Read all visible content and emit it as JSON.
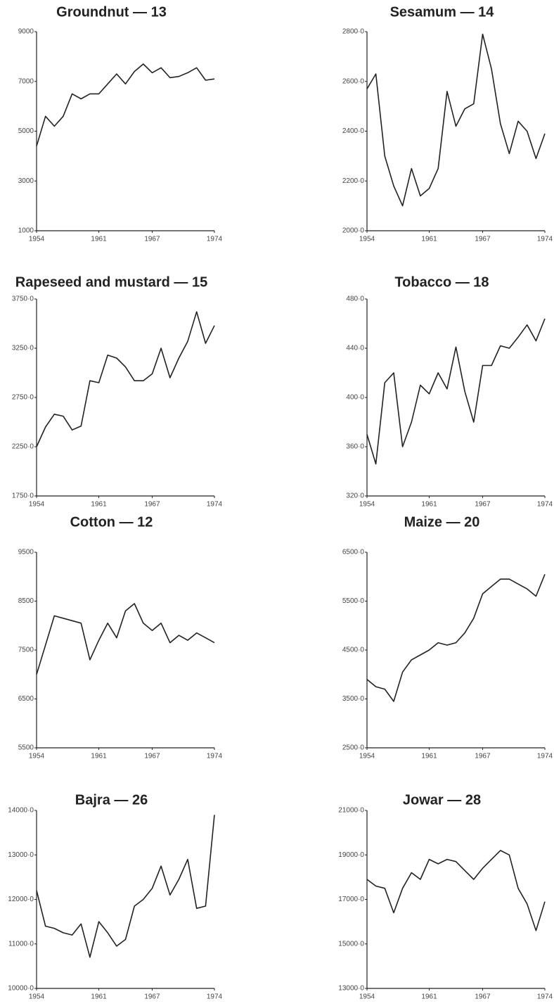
{
  "chart_data": [
    {
      "type": "line",
      "title": "Groundnut — 13",
      "color": "#222222",
      "x": [
        1954,
        1955,
        1956,
        1957,
        1958,
        1959,
        1960,
        1961,
        1962,
        1963,
        1964,
        1965,
        1966,
        1967,
        1968,
        1969,
        1970,
        1971,
        1972,
        1973,
        1974
      ],
      "values": [
        4400,
        5600,
        5200,
        5600,
        6500,
        6300,
        6500,
        6500,
        6900,
        7300,
        6900,
        7400,
        7700,
        7350,
        7550,
        7150,
        7200,
        7350,
        7550,
        7050,
        7100
      ],
      "xlim": [
        1954,
        1974
      ],
      "xticks": [
        1954,
        1961,
        1967,
        1974
      ],
      "ylim": [
        1000,
        9000
      ],
      "yticks": [
        1000,
        3000,
        5000,
        7000,
        9000
      ]
    },
    {
      "type": "line",
      "title": "Sesamum — 14",
      "color": "#222222",
      "x": [
        1954,
        1955,
        1956,
        1957,
        1958,
        1959,
        1960,
        1961,
        1962,
        1963,
        1964,
        1965,
        1966,
        1967,
        1968,
        1969,
        1970,
        1971,
        1972,
        1973,
        1974
      ],
      "values": [
        2570,
        2630,
        2300,
        2180,
        2100,
        2250,
        2140,
        2170,
        2250,
        2560,
        2420,
        2490,
        2510,
        2790,
        2650,
        2430,
        2310,
        2440,
        2400,
        2290,
        2390
      ],
      "xlim": [
        1954,
        1974
      ],
      "xticks": [
        1954,
        1961,
        1967,
        1974
      ],
      "ylim": [
        2000,
        2800
      ],
      "yticks": [
        {
          "value": 2000,
          "label": "2000·0"
        },
        {
          "value": 2200,
          "label": "2200·0"
        },
        {
          "value": 2400,
          "label": "2400·0"
        },
        {
          "value": 2600,
          "label": "2600·0"
        },
        {
          "value": 2800,
          "label": "2800·0"
        }
      ]
    },
    {
      "type": "line",
      "title": "Rapeseed and mustard — 15",
      "color": "#222222",
      "x": [
        1954,
        1955,
        1956,
        1957,
        1958,
        1959,
        1960,
        1961,
        1962,
        1963,
        1964,
        1965,
        1966,
        1967,
        1968,
        1969,
        1970,
        1971,
        1972,
        1973,
        1974
      ],
      "values": [
        2250,
        2450,
        2580,
        2560,
        2420,
        2460,
        2920,
        2900,
        3180,
        3150,
        3060,
        2920,
        2920,
        2990,
        3250,
        2950,
        3150,
        3320,
        3620,
        3300,
        3480
      ],
      "xlim": [
        1954,
        1974
      ],
      "xticks": [
        1954,
        1961,
        1967,
        1974
      ],
      "ylim": [
        1750,
        3750
      ],
      "yticks": [
        {
          "value": 1750,
          "label": "1750·0"
        },
        {
          "value": 2250,
          "label": "2250·0"
        },
        {
          "value": 2750,
          "label": "2750·0"
        },
        {
          "value": 3250,
          "label": "3250·0"
        },
        {
          "value": 3750,
          "label": "3750·0"
        }
      ]
    },
    {
      "type": "line",
      "title": "Tobacco — 18",
      "color": "#222222",
      "x": [
        1954,
        1955,
        1956,
        1957,
        1958,
        1959,
        1960,
        1961,
        1962,
        1963,
        1964,
        1965,
        1966,
        1967,
        1968,
        1969,
        1970,
        1971,
        1972,
        1973,
        1974
      ],
      "values": [
        370,
        346,
        412,
        420,
        360,
        380,
        410,
        403,
        420,
        407,
        441,
        405,
        380,
        426,
        426,
        442,
        440,
        449,
        459,
        446,
        464
      ],
      "xlim": [
        1954,
        1974
      ],
      "xticks": [
        1954,
        1961,
        1967,
        1974
      ],
      "ylim": [
        320,
        480
      ],
      "yticks": [
        {
          "value": 320,
          "label": "320·0"
        },
        {
          "value": 360,
          "label": "360·0"
        },
        {
          "value": 400,
          "label": "400·0"
        },
        {
          "value": 440,
          "label": "440·0"
        },
        {
          "value": 480,
          "label": "480·0"
        }
      ]
    },
    {
      "type": "line",
      "title": "Cotton — 12",
      "color": "#222222",
      "x": [
        1954,
        1955,
        1956,
        1957,
        1958,
        1959,
        1960,
        1961,
        1962,
        1963,
        1964,
        1965,
        1966,
        1967,
        1968,
        1969,
        1970,
        1971,
        1972,
        1973,
        1974
      ],
      "values": [
        7000,
        7600,
        8200,
        8150,
        8100,
        8050,
        7300,
        7700,
        8050,
        7750,
        8300,
        8450,
        8050,
        7900,
        8050,
        7650,
        7800,
        7700,
        7850,
        7750,
        7650
      ],
      "xlim": [
        1954,
        1974
      ],
      "xticks": [
        1954,
        1961,
        1967,
        1974
      ],
      "ylim": [
        5500,
        9500
      ],
      "yticks": [
        5500,
        6500,
        7500,
        8500,
        9500
      ]
    },
    {
      "type": "line",
      "title": "Maize — 20",
      "color": "#222222",
      "x": [
        1954,
        1955,
        1956,
        1957,
        1958,
        1959,
        1960,
        1961,
        1962,
        1963,
        1964,
        1965,
        1966,
        1967,
        1968,
        1969,
        1970,
        1971,
        1972,
        1973,
        1974
      ],
      "values": [
        3900,
        3750,
        3700,
        3450,
        4050,
        4300,
        4400,
        4500,
        4650,
        4600,
        4650,
        4850,
        5150,
        5650,
        5800,
        5950,
        5950,
        5850,
        5750,
        5600,
        6050
      ],
      "xlim": [
        1954,
        1974
      ],
      "xticks": [
        1954,
        1961,
        1967,
        1974
      ],
      "ylim": [
        2500,
        6500
      ],
      "yticks": [
        {
          "value": 2500,
          "label": "2500·0"
        },
        {
          "value": 3500,
          "label": "3500·0"
        },
        {
          "value": 4500,
          "label": "4500·0"
        },
        {
          "value": 5500,
          "label": "5500·0"
        },
        {
          "value": 6500,
          "label": "6500·0"
        }
      ]
    },
    {
      "type": "line",
      "title": "Bajra — 26",
      "color": "#222222",
      "x": [
        1954,
        1955,
        1956,
        1957,
        1958,
        1959,
        1960,
        1961,
        1962,
        1963,
        1964,
        1965,
        1966,
        1967,
        1968,
        1969,
        1970,
        1971,
        1972,
        1973,
        1974
      ],
      "values": [
        12200,
        11400,
        11350,
        11250,
        11200,
        11450,
        10700,
        11500,
        11250,
        10950,
        11100,
        11850,
        12000,
        12250,
        12750,
        12100,
        12450,
        12900,
        11800,
        11850,
        13900
      ],
      "xlim": [
        1954,
        1974
      ],
      "xticks": [
        1954,
        1961,
        1967,
        1974
      ],
      "ylim": [
        10000,
        14000
      ],
      "yticks": [
        {
          "value": 10000,
          "label": "10000·0"
        },
        {
          "value": 11000,
          "label": "11000·0"
        },
        {
          "value": 12000,
          "label": "12000·0"
        },
        {
          "value": 13000,
          "label": "13000·0"
        },
        {
          "value": 14000,
          "label": "14000·0"
        }
      ]
    },
    {
      "type": "line",
      "title": "Jowar — 28",
      "color": "#222222",
      "x": [
        1954,
        1955,
        1956,
        1957,
        1958,
        1959,
        1960,
        1961,
        1962,
        1963,
        1964,
        1965,
        1966,
        1967,
        1968,
        1969,
        1970,
        1971,
        1972,
        1973,
        1974
      ],
      "values": [
        17900,
        17600,
        17500,
        16400,
        17500,
        18200,
        17900,
        18800,
        18600,
        18800,
        18700,
        18300,
        17900,
        18400,
        18800,
        19200,
        19000,
        17500,
        16800,
        15600,
        16900
      ],
      "xlim": [
        1954,
        1974
      ],
      "xticks": [
        1954,
        1961,
        1967,
        1974
      ],
      "ylim": [
        13000,
        21000
      ],
      "yticks": [
        {
          "value": 13000,
          "label": "13000·0"
        },
        {
          "value": 15000,
          "label": "15000·0"
        },
        {
          "value": 17000,
          "label": "17000·0"
        },
        {
          "value": 19000,
          "label": "19000·0"
        },
        {
          "value": 21000,
          "label": "21000·0"
        }
      ]
    }
  ]
}
